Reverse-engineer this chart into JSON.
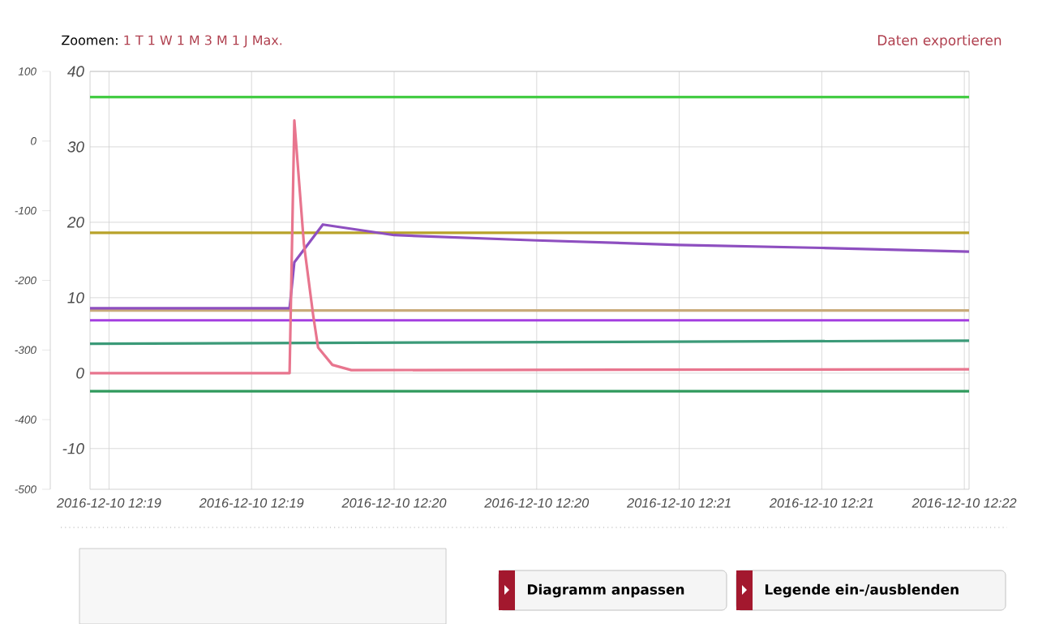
{
  "chart_data": {
    "type": "line",
    "x": [
      "2016-12-10T12:18:56",
      "2016-12-10T12:22:01"
    ],
    "xlim": [
      "2016-12-10T12:18:56",
      "2016-12-10T12:22:01"
    ],
    "xticks": [
      {
        "value": "2016-12-10T12:19:00",
        "label": "2016-12-10 12:19"
      },
      {
        "value": "2016-12-10T12:19:30",
        "label": "2016-12-10 12:19"
      },
      {
        "value": "2016-12-10T12:20:00",
        "label": "2016-12-10 12:20"
      },
      {
        "value": "2016-12-10T12:20:30",
        "label": "2016-12-10 12:20"
      },
      {
        "value": "2016-12-10T12:21:00",
        "label": "2016-12-10 12:21"
      },
      {
        "value": "2016-12-10T12:21:30",
        "label": "2016-12-10 12:21"
      },
      {
        "value": "2016-12-10T12:22:00",
        "label": "2016-12-10 12:22"
      }
    ],
    "ylim": [
      -15.4,
      40
    ],
    "yticks": [
      -10,
      0,
      10,
      20,
      30,
      40
    ],
    "y2lim": [
      -500,
      100
    ],
    "y2ticks": [
      -500,
      -400,
      -300,
      -200,
      -100,
      0,
      100
    ],
    "grid": true,
    "marker": "none",
    "series": [
      {
        "color": "#44cc44",
        "values": [
          36.6,
          36.6
        ]
      },
      {
        "color": "#b8a22a",
        "values": [
          18.6,
          18.6
        ]
      },
      {
        "color": "#c9ab7a",
        "values": [
          8.3,
          8.3
        ]
      },
      {
        "color": "#a43fe0",
        "values": [
          7.0,
          7.0
        ]
      },
      {
        "color": "#3b9a78",
        "values": [
          3.9,
          4.3
        ]
      },
      {
        "color": "#2f9a5c",
        "values": [
          -2.4,
          -2.4
        ]
      },
      {
        "color": "#8e4fc0",
        "x": [
          "2016-12-10T12:18:56",
          "2016-12-10T12:19:38",
          "2016-12-10T12:19:39",
          "2016-12-10T12:19:45",
          "2016-12-10T12:20:00",
          "2016-12-10T12:20:30",
          "2016-12-10T12:21:00",
          "2016-12-10T12:21:30",
          "2016-12-10T12:22:01"
        ],
        "values": [
          8.6,
          8.6,
          14.7,
          19.7,
          18.3,
          17.6,
          17.0,
          16.6,
          16.1
        ]
      },
      {
        "color": "#e8758e",
        "x": [
          "2016-12-10T12:18:56",
          "2016-12-10T12:19:38",
          "2016-12-10T12:19:39",
          "2016-12-10T12:19:41",
          "2016-12-10T12:19:43",
          "2016-12-10T12:19:44",
          "2016-12-10T12:19:47",
          "2016-12-10T12:19:51",
          "2016-12-10T12:22:01"
        ],
        "values": [
          0.0,
          0.0,
          33.5,
          17.2,
          7.5,
          3.4,
          1.1,
          0.4,
          0.5
        ]
      }
    ],
    "annotations": [
      "Zoomen:",
      "1 T",
      "1 W",
      "1 M",
      "3 M",
      "1 J",
      "Max.",
      "Daten exportieren",
      "Diagramm anpassen",
      "Legende ein-/ausblenden"
    ]
  }
}
